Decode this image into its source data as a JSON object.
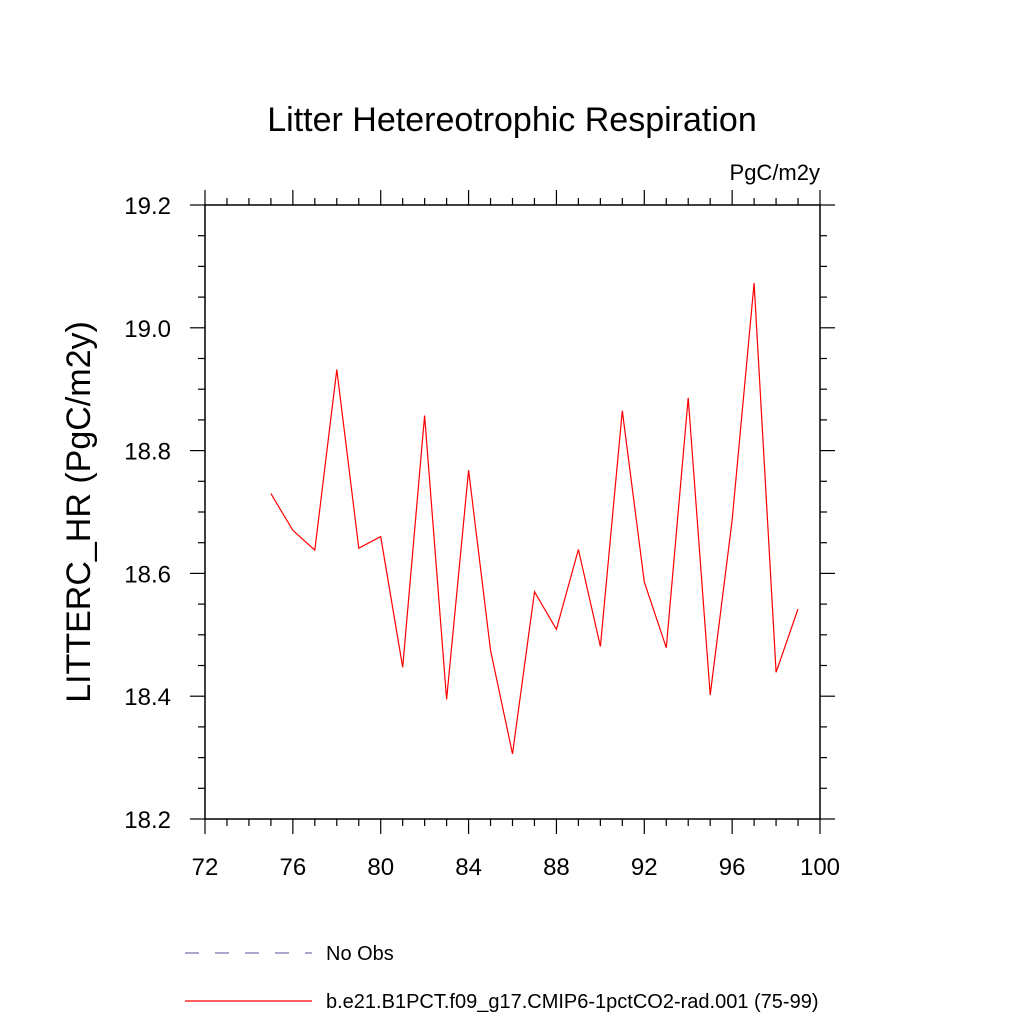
{
  "chart_data": {
    "type": "line",
    "title": "Litter Hetereotrophic Respiration",
    "units_label": "PgC/m2y",
    "xlabel": "",
    "ylabel": "LITTERC_HR  (PgC/m2y)",
    "xlim": [
      72,
      100
    ],
    "ylim": [
      18.2,
      19.2
    ],
    "x_ticks": [
      72,
      76,
      80,
      84,
      88,
      92,
      96,
      100
    ],
    "y_ticks": [
      18.2,
      18.4,
      18.6,
      18.8,
      19.0,
      19.2
    ],
    "y_tick_labels": [
      "18.2",
      "18.4",
      "18.6",
      "18.8",
      "19.0",
      "19.2"
    ],
    "grid": false,
    "legend_placement": "bottom",
    "series": [
      {
        "name": "b.e21.B1PCT.f09_g17.CMIP6-1pctCO2-rad.001 (75-99)",
        "color": "#ff0000",
        "style": "solid",
        "x": [
          75,
          76,
          77,
          78,
          79,
          80,
          81,
          82,
          83,
          84,
          85,
          86,
          87,
          88,
          89,
          90,
          91,
          92,
          93,
          94,
          95,
          96,
          97,
          98,
          99
        ],
        "y": [
          18.73,
          18.67,
          18.638,
          18.932,
          18.641,
          18.66,
          18.447,
          18.857,
          18.395,
          18.768,
          18.475,
          18.306,
          18.57,
          18.509,
          18.639,
          18.481,
          18.865,
          18.586,
          18.479,
          18.886,
          18.402,
          18.686,
          19.073,
          18.439,
          18.542
        ]
      }
    ],
    "legend": [
      {
        "label": "No Obs",
        "color": "#7a6fb0",
        "style": "dashed"
      },
      {
        "label": "b.e21.B1PCT.f09_g17.CMIP6-1pctCO2-rad.001 (75-99)",
        "color": "#ff0000",
        "style": "solid"
      }
    ]
  }
}
